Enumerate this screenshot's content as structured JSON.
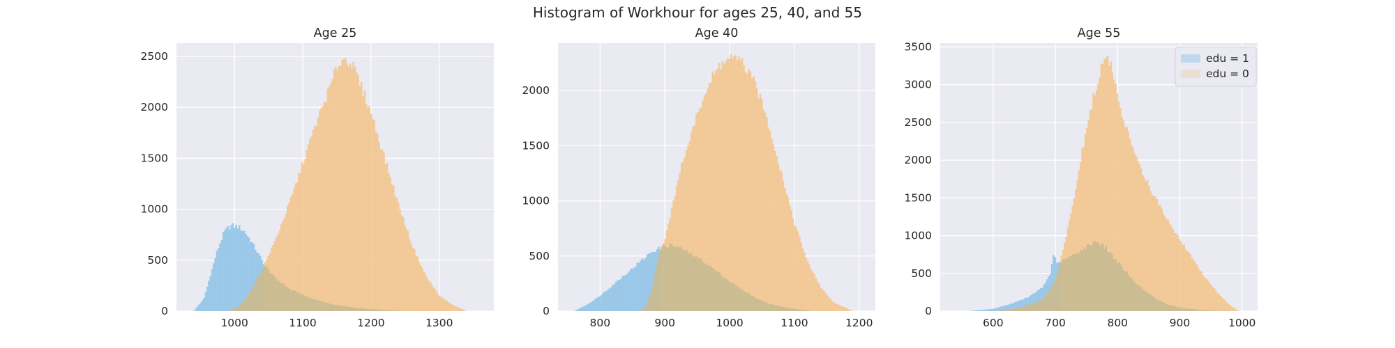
{
  "suptitle": "Histogram of Workhour for ages 25, 40, and 55",
  "colors": {
    "background": "#eaeaf2",
    "grid": "#ffffff",
    "edu1": "#8fc3e8",
    "edu0": "#f3c48b",
    "overlap": "#c9bc92"
  },
  "chart_data": [
    {
      "type": "histogram",
      "title": "Age 25",
      "xlim": [
        915,
        1380
      ],
      "ylim": [
        0,
        2630
      ],
      "xticks": [
        1000,
        1100,
        1200,
        1300
      ],
      "yticks": [
        0,
        500,
        1000,
        1500,
        2000,
        2500
      ],
      "series": [
        {
          "name": "edu = 1",
          "points": [
            [
              940,
              0
            ],
            [
              955,
              120
            ],
            [
              965,
              360
            ],
            [
              975,
              600
            ],
            [
              985,
              780
            ],
            [
              995,
              840
            ],
            [
              1005,
              830
            ],
            [
              1015,
              780
            ],
            [
              1025,
              680
            ],
            [
              1035,
              560
            ],
            [
              1045,
              440
            ],
            [
              1060,
              320
            ],
            [
              1080,
              220
            ],
            [
              1110,
              130
            ],
            [
              1140,
              70
            ],
            [
              1180,
              30
            ],
            [
              1220,
              10
            ],
            [
              1260,
              0
            ]
          ]
        },
        {
          "name": "edu = 0",
          "points": [
            [
              990,
              0
            ],
            [
              1005,
              40
            ],
            [
              1020,
              150
            ],
            [
              1040,
              400
            ],
            [
              1060,
              700
            ],
            [
              1080,
              1050
            ],
            [
              1100,
              1450
            ],
            [
              1120,
              1850
            ],
            [
              1140,
              2200
            ],
            [
              1150,
              2400
            ],
            [
              1160,
              2480
            ],
            [
              1170,
              2450
            ],
            [
              1180,
              2300
            ],
            [
              1200,
              1950
            ],
            [
              1220,
              1500
            ],
            [
              1240,
              1050
            ],
            [
              1260,
              650
            ],
            [
              1280,
              350
            ],
            [
              1300,
              150
            ],
            [
              1320,
              60
            ],
            [
              1340,
              0
            ]
          ]
        }
      ]
    },
    {
      "type": "histogram",
      "title": "Age 40",
      "xlim": [
        735,
        1225
      ],
      "ylim": [
        0,
        2430
      ],
      "xticks": [
        800,
        900,
        1000,
        1100,
        1200
      ],
      "yticks": [
        0,
        500,
        1000,
        1500,
        2000
      ],
      "series": [
        {
          "name": "edu = 1",
          "points": [
            [
              760,
              0
            ],
            [
              780,
              60
            ],
            [
              800,
              140
            ],
            [
              820,
              240
            ],
            [
              840,
              340
            ],
            [
              860,
              440
            ],
            [
              880,
              540
            ],
            [
              900,
              590
            ],
            [
              910,
              600
            ],
            [
              920,
              580
            ],
            [
              940,
              520
            ],
            [
              960,
              450
            ],
            [
              980,
              360
            ],
            [
              1000,
              270
            ],
            [
              1020,
              190
            ],
            [
              1040,
              120
            ],
            [
              1060,
              70
            ],
            [
              1080,
              40
            ],
            [
              1100,
              20
            ],
            [
              1130,
              0
            ]
          ]
        },
        {
          "name": "edu = 0",
          "points": [
            [
              860,
              0
            ],
            [
              870,
              30
            ],
            [
              880,
              200
            ],
            [
              890,
              500
            ],
            [
              900,
              650
            ],
            [
              910,
              900
            ],
            [
              920,
              1200
            ],
            [
              940,
              1600
            ],
            [
              960,
              1950
            ],
            [
              980,
              2200
            ],
            [
              1000,
              2300
            ],
            [
              1020,
              2250
            ],
            [
              1040,
              2050
            ],
            [
              1060,
              1700
            ],
            [
              1080,
              1250
            ],
            [
              1100,
              800
            ],
            [
              1120,
              450
            ],
            [
              1140,
              220
            ],
            [
              1160,
              80
            ],
            [
              1190,
              0
            ]
          ]
        }
      ]
    },
    {
      "type": "histogram",
      "title": "Age 55",
      "xlim": [
        515,
        1025
      ],
      "ylim": [
        0,
        3550
      ],
      "xticks": [
        600,
        700,
        800,
        900,
        1000
      ],
      "yticks": [
        0,
        500,
        1000,
        1500,
        2000,
        2500,
        3000,
        3500
      ],
      "series": [
        {
          "name": "edu = 1",
          "points": [
            [
              560,
              0
            ],
            [
              600,
              30
            ],
            [
              630,
              100
            ],
            [
              660,
              200
            ],
            [
              680,
              320
            ],
            [
              692,
              500
            ],
            [
              698,
              800
            ],
            [
              702,
              620
            ],
            [
              715,
              680
            ],
            [
              730,
              750
            ],
            [
              750,
              850
            ],
            [
              765,
              930
            ],
            [
              780,
              850
            ],
            [
              800,
              650
            ],
            [
              820,
              450
            ],
            [
              840,
              290
            ],
            [
              860,
              170
            ],
            [
              880,
              90
            ],
            [
              900,
              45
            ],
            [
              940,
              10
            ],
            [
              980,
              0
            ]
          ]
        },
        {
          "name": "edu = 0",
          "points": [
            [
              600,
              0
            ],
            [
              640,
              40
            ],
            [
              680,
              150
            ],
            [
              700,
              400
            ],
            [
              715,
              900
            ],
            [
              730,
              1500
            ],
            [
              745,
              2200
            ],
            [
              760,
              2800
            ],
            [
              775,
              3250
            ],
            [
              785,
              3350
            ],
            [
              795,
              3100
            ],
            [
              810,
              2500
            ],
            [
              825,
              2150
            ],
            [
              840,
              1850
            ],
            [
              860,
              1500
            ],
            [
              880,
              1200
            ],
            [
              900,
              950
            ],
            [
              920,
              700
            ],
            [
              940,
              450
            ],
            [
              960,
              250
            ],
            [
              980,
              80
            ],
            [
              995,
              0
            ]
          ]
        }
      ]
    }
  ],
  "legend": {
    "entries": [
      {
        "label": "edu = 1"
      },
      {
        "label": "edu = 0"
      }
    ]
  }
}
